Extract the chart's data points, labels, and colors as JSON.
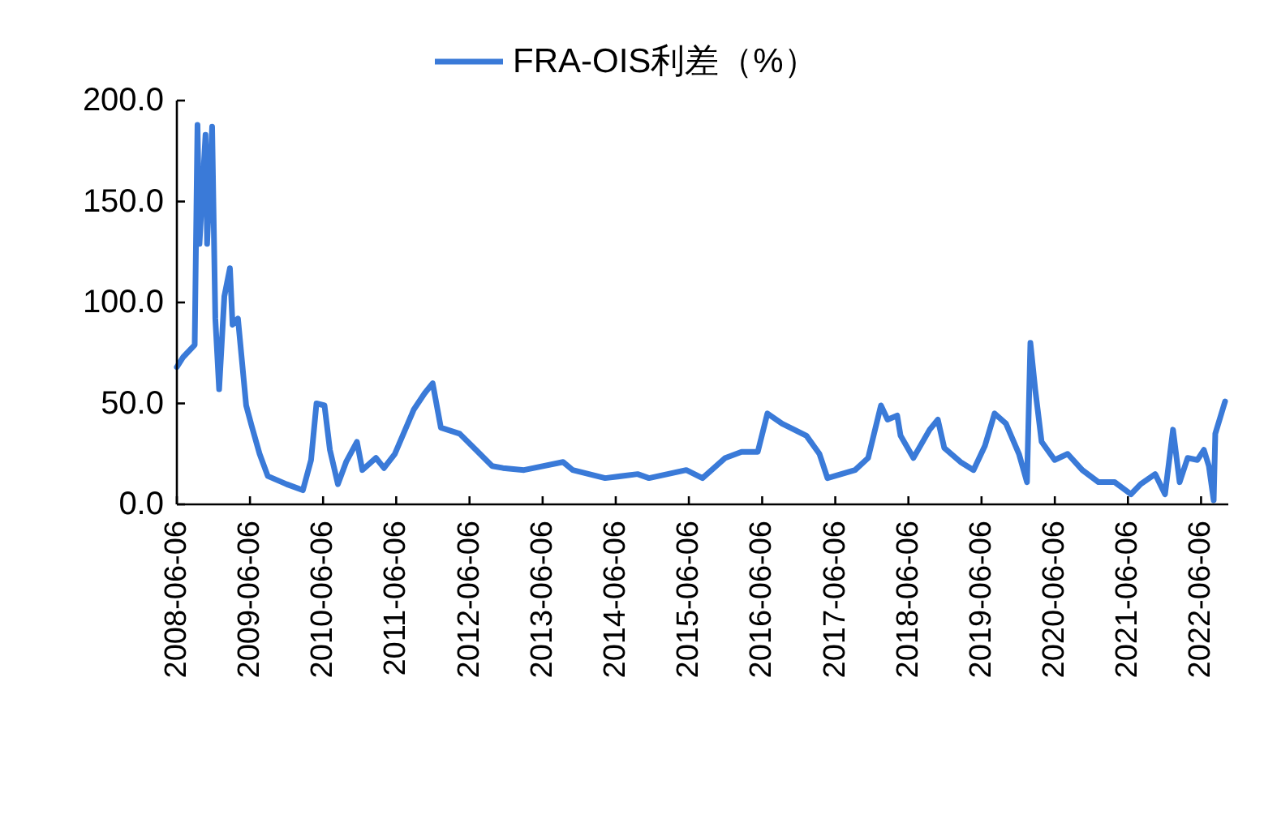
{
  "chart_data": {
    "type": "line",
    "legend": "top",
    "grid": false,
    "marker": "none",
    "line_style": "solid",
    "xlim": [
      "2008-06-06",
      "2022-10-20"
    ],
    "xticks": [
      "2008-06-06",
      "2009-06-06",
      "2010-06-06",
      "2011-06-06",
      "2012-06-06",
      "2013-06-06",
      "2014-06-06",
      "2015-06-06",
      "2016-06-06",
      "2017-06-06",
      "2018-06-06",
      "2019-06-06",
      "2020-06-06",
      "2021-06-06",
      "2022-06-06"
    ],
    "ylim": [
      0,
      200
    ],
    "yticks": [
      {
        "value": 0,
        "label": "0.0"
      },
      {
        "value": 50,
        "label": "50.0"
      },
      {
        "value": 100,
        "label": "100.0"
      },
      {
        "value": 150,
        "label": "150.0"
      },
      {
        "value": 200,
        "label": "200.0"
      }
    ],
    "x": [
      "2008-06-06",
      "2008-07-08",
      "2008-09-03",
      "2008-09-17",
      "2008-09-27",
      "2008-10-27",
      "2008-11-04",
      "2008-11-29",
      "2008-12-15",
      "2009-01-03",
      "2009-01-29",
      "2009-02-26",
      "2009-03-11",
      "2009-04-07",
      "2009-05-18",
      "2009-06-14",
      "2009-07-24",
      "2009-09-03",
      "2009-12-06",
      "2010-02-25",
      "2010-04-07",
      "2010-05-04",
      "2010-06-13",
      "2010-07-10",
      "2010-08-19",
      "2010-09-29",
      "2010-11-22",
      "2010-12-19",
      "2011-02-25",
      "2011-04-06",
      "2011-05-30",
      "2011-09-02",
      "2011-10-26",
      "2011-12-05",
      "2012-01-15",
      "2012-04-18",
      "2012-07-08",
      "2012-09-27",
      "2012-11-20",
      "2013-03-05",
      "2013-09-16",
      "2013-11-03",
      "2014-04-14",
      "2014-09-23",
      "2014-11-19",
      "2015-05-24",
      "2015-08-13",
      "2015-12-05",
      "2016-02-24",
      "2016-05-15",
      "2016-07-02",
      "2016-09-13",
      "2017-01-13",
      "2017-03-19",
      "2017-04-28",
      "2017-09-13",
      "2017-11-17",
      "2018-01-20",
      "2018-02-22",
      "2018-04-11",
      "2018-04-28",
      "2018-07-01",
      "2018-09-20",
      "2018-10-31",
      "2018-12-02",
      "2019-02-21",
      "2019-04-27",
      "2019-06-23",
      "2019-08-10",
      "2019-10-06",
      "2019-12-10",
      "2020-01-19",
      "2020-02-05",
      "2020-02-29",
      "2020-04-01",
      "2020-06-05",
      "2020-08-09",
      "2020-10-21",
      "2021-01-10",
      "2021-04-01",
      "2021-06-21",
      "2021-08-08",
      "2021-10-20",
      "2021-12-08",
      "2022-01-17",
      "2022-02-19",
      "2022-03-31",
      "2022-05-19",
      "2022-06-20",
      "2022-07-15",
      "2022-08-08",
      "2022-08-16",
      "2022-10-04"
    ],
    "series": [
      {
        "name": "FRA-OIS利差（%）",
        "color": "#3a7ad8",
        "values": [
          68,
          73,
          79,
          188,
          129,
          183,
          129,
          187,
          92,
          57,
          103,
          117,
          89,
          92,
          49,
          39,
          25,
          14,
          10,
          7,
          22,
          50,
          49,
          27,
          10,
          21,
          31,
          17,
          23,
          18,
          25,
          47,
          55,
          60,
          38,
          35,
          27,
          19,
          18,
          17,
          21,
          17,
          13,
          15,
          13,
          17,
          13,
          23,
          26,
          26,
          45,
          40,
          34,
          25,
          13,
          17,
          23,
          49,
          42,
          44,
          34,
          23,
          37,
          42,
          28,
          21,
          17,
          29,
          45,
          40,
          25,
          11,
          80,
          57,
          31,
          22,
          25,
          17,
          11,
          11,
          5,
          10,
          15,
          5,
          37,
          11,
          23,
          22,
          27,
          19,
          2,
          35,
          51
        ]
      }
    ]
  }
}
